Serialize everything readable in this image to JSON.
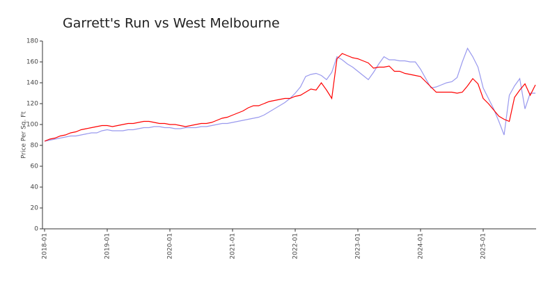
{
  "chart_data": {
    "type": "line",
    "title": "Garrett's Run vs West Melbourne",
    "y_label": "Price Per Sq. Ft",
    "x": [
      "2018-01",
      "2018-02",
      "2018-03",
      "2018-04",
      "2018-05",
      "2018-06",
      "2018-07",
      "2018-08",
      "2018-09",
      "2018-10",
      "2018-11",
      "2018-12",
      "2019-01",
      "2019-02",
      "2019-03",
      "2019-04",
      "2019-05",
      "2019-06",
      "2019-07",
      "2019-08",
      "2019-09",
      "2019-10",
      "2019-11",
      "2019-12",
      "2020-01",
      "2020-02",
      "2020-03",
      "2020-04",
      "2020-05",
      "2020-06",
      "2020-07",
      "2020-08",
      "2020-09",
      "2020-10",
      "2020-11",
      "2020-12",
      "2021-01",
      "2021-02",
      "2021-03",
      "2021-04",
      "2021-05",
      "2021-06",
      "2021-07",
      "2021-08",
      "2021-09",
      "2021-10",
      "2021-11",
      "2021-12",
      "2022-01",
      "2022-02",
      "2022-03",
      "2022-04",
      "2022-05",
      "2022-06",
      "2022-07",
      "2022-08",
      "2022-09",
      "2022-10",
      "2022-11",
      "2022-12",
      "2023-01",
      "2023-02",
      "2023-03",
      "2023-04",
      "2023-05",
      "2023-06",
      "2023-07",
      "2023-08",
      "2023-09",
      "2023-10",
      "2023-11",
      "2023-12",
      "2024-01",
      "2024-02",
      "2024-03",
      "2024-04",
      "2024-05",
      "2024-06",
      "2024-07",
      "2024-08",
      "2024-09",
      "2024-10",
      "2024-11",
      "2024-12",
      "2025-01",
      "2025-02",
      "2025-03",
      "2025-04",
      "2025-05",
      "2025-06",
      "2025-07",
      "2025-08",
      "2025-09",
      "2025-10",
      "2025-11"
    ],
    "series": [
      {
        "color": "#ff0000",
        "values": [
          84,
          86,
          87,
          89,
          90,
          92,
          93,
          95,
          96,
          97,
          98,
          99,
          99,
          98,
          99,
          100,
          101,
          101,
          102,
          103,
          103,
          102,
          101,
          101,
          100,
          100,
          99,
          98,
          99,
          100,
          101,
          101,
          102,
          104,
          106,
          107,
          109,
          111,
          113,
          116,
          118,
          118,
          120,
          122,
          123,
          124,
          125,
          125,
          127,
          128,
          131,
          134,
          133,
          140,
          133,
          125,
          163,
          168,
          166,
          164,
          163,
          161,
          159,
          154,
          155,
          155,
          156,
          151,
          151,
          149,
          148,
          147,
          146,
          141,
          136,
          131,
          131,
          131,
          131,
          130,
          131,
          137,
          144,
          139,
          125,
          120,
          114,
          108,
          105,
          103,
          126,
          133,
          139,
          128,
          138
        ]
      },
      {
        "color": "#9999ee",
        "values": [
          84,
          85,
          86,
          87,
          88,
          89,
          89,
          90,
          91,
          92,
          92,
          94,
          95,
          94,
          94,
          94,
          95,
          95,
          96,
          97,
          97,
          98,
          98,
          97,
          97,
          96,
          96,
          97,
          97,
          97,
          98,
          98,
          99,
          100,
          101,
          101,
          102,
          103,
          104,
          105,
          106,
          107,
          109,
          112,
          115,
          118,
          121,
          125,
          130,
          136,
          146,
          148,
          149,
          147,
          143,
          150,
          165,
          162,
          158,
          155,
          151,
          147,
          143,
          150,
          158,
          165,
          162,
          162,
          161,
          161,
          160,
          160,
          153,
          144,
          135,
          136,
          138,
          140,
          141,
          145,
          160,
          173,
          165,
          155,
          135,
          125,
          115,
          103,
          90,
          128,
          137,
          144,
          115,
          130,
          130
        ]
      }
    ],
    "xticks": [
      "2018-01",
      "2019-01",
      "2020-01",
      "2021-01",
      "2022-01",
      "2023-01",
      "2024-01",
      "2025-01"
    ],
    "ylim": [
      0,
      180
    ],
    "yticks": [
      0,
      20,
      40,
      60,
      80,
      100,
      120,
      140,
      160,
      180
    ],
    "grid": false
  }
}
